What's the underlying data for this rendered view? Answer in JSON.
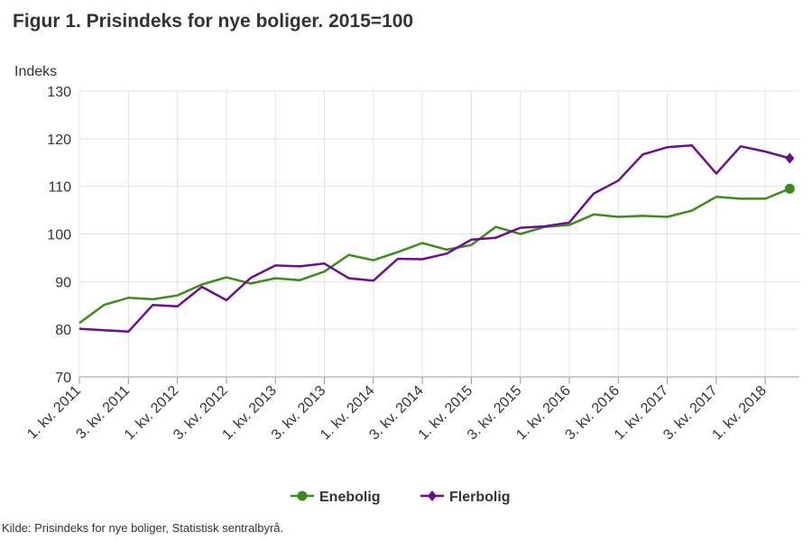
{
  "title": "Figur 1. Prisindeks for nye boliger. 2015=100",
  "source": "Kilde: Prisindeks for nye boliger, Statistisk sentralbyrå.",
  "chart_data": {
    "type": "line",
    "title": "Figur 1. Prisindeks for nye boliger. 2015=100",
    "ylabel": "Indeks",
    "xlabel": "",
    "ylim": [
      70,
      130
    ],
    "yticks": [
      70,
      80,
      90,
      100,
      110,
      120,
      130
    ],
    "grid": true,
    "legend_position": "bottom",
    "categories": [
      "1. kv. 2011",
      "2. kv. 2011",
      "3. kv. 2011",
      "4. kv. 2011",
      "1. kv. 2012",
      "2. kv. 2012",
      "3. kv. 2012",
      "4. kv. 2012",
      "1. kv. 2013",
      "2. kv. 2013",
      "3. kv. 2013",
      "4. kv. 2013",
      "1. kv. 2014",
      "2. kv. 2014",
      "3. kv. 2014",
      "4. kv. 2014",
      "1. kv. 2015",
      "2. kv. 2015",
      "3. kv. 2015",
      "4. kv. 2015",
      "1. kv. 2016",
      "2. kv. 2016",
      "3. kv. 2016",
      "4. kv. 2016",
      "1. kv. 2017",
      "2. kv. 2017",
      "3. kv. 2017",
      "4. kv. 2017",
      "1. kv. 2018",
      "2. kv. 2018"
    ],
    "tick_labels": [
      "1. kv. 2011",
      "3. kv. 2011",
      "1. kv. 2012",
      "3. kv. 2012",
      "1. kv. 2013",
      "3. kv. 2013",
      "1. kv. 2014",
      "3. kv. 2014",
      "1. kv. 2015",
      "3. kv. 2015",
      "1. kv. 2016",
      "3. kv. 2016",
      "1. kv. 2017",
      "3. kv. 2017",
      "1. kv. 2018"
    ],
    "series": [
      {
        "name": "Enebolig",
        "color": "#3f8a1d",
        "marker": "circle",
        "values": [
          81.3,
          85.1,
          86.6,
          86.3,
          87.1,
          89.4,
          90.9,
          89.6,
          90.7,
          90.3,
          92.1,
          95.6,
          94.5,
          96.2,
          98.1,
          96.7,
          97.7,
          101.5,
          100.0,
          101.5,
          101.9,
          104.1,
          103.6,
          103.8,
          103.6,
          104.9,
          107.8,
          107.4,
          107.4,
          109.5
        ]
      },
      {
        "name": "Flerbolig",
        "color": "#6b0f8c",
        "marker": "diamond",
        "values": [
          80.1,
          79.8,
          79.5,
          85.1,
          84.8,
          88.9,
          86.1,
          90.8,
          93.4,
          93.2,
          93.8,
          90.7,
          90.2,
          94.8,
          94.7,
          95.9,
          98.8,
          99.2,
          101.3,
          101.6,
          102.4,
          108.5,
          111.2,
          116.7,
          118.2,
          118.6,
          112.7,
          118.4,
          117.3,
          115.9
        ]
      }
    ]
  }
}
